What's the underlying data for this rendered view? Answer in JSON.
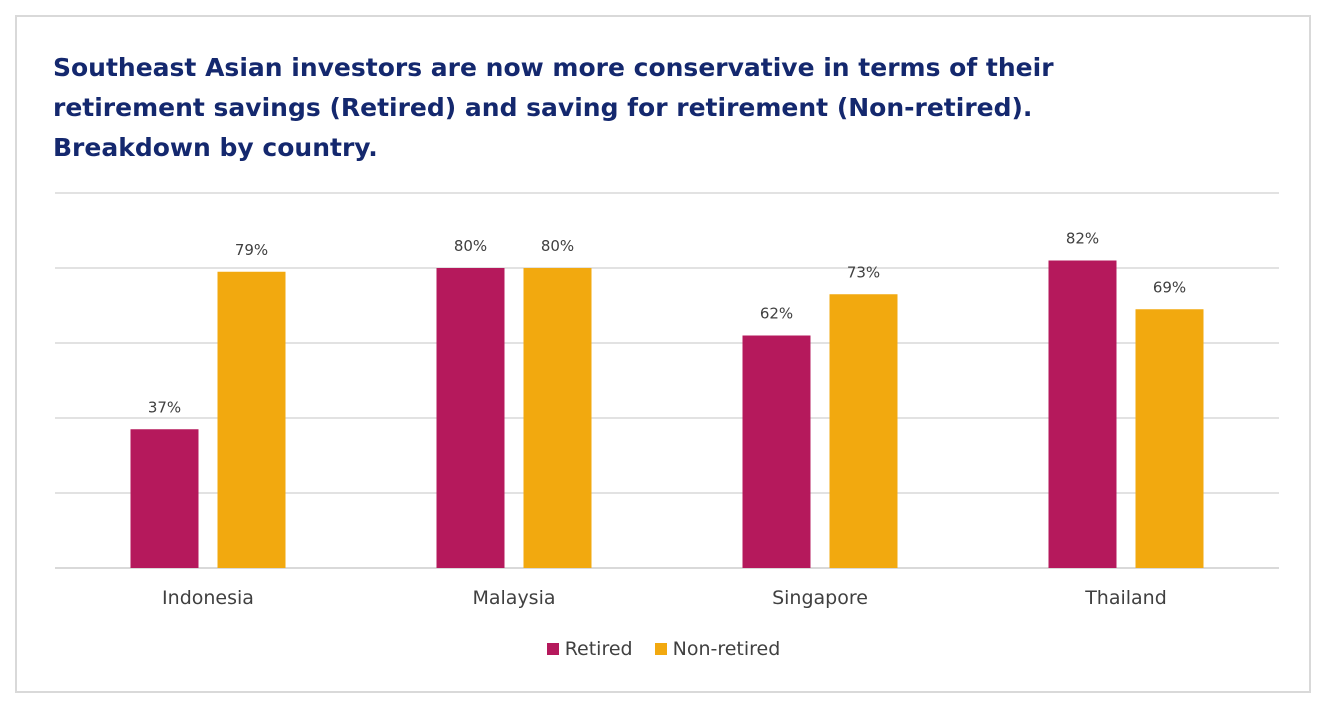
{
  "title_lines": [
    "Southeast Asian investors are now more conservative in terms of their",
    "retirement savings (Retired) and saving for retirement (Non-retired).",
    "Breakdown by country."
  ],
  "colors": {
    "retired": "#b5195c",
    "non_retired": "#f2a90f",
    "grid": "#d9d9d9",
    "text": "#404040",
    "title": "#14286e"
  },
  "chart_data": {
    "type": "bar",
    "title": "Southeast Asian investors are now more conservative in terms of their retirement savings (Retired) and saving for retirement (Non-retired). Breakdown by country.",
    "categories": [
      "Indonesia",
      "Malaysia",
      "Singapore",
      "Thailand"
    ],
    "series": [
      {
        "name": "Retired",
        "values": [
          37,
          80,
          62,
          82
        ],
        "labels": [
          "37%",
          "80%",
          "62%",
          "82%"
        ]
      },
      {
        "name": "Non-retired",
        "values": [
          79,
          80,
          73,
          69
        ],
        "labels": [
          "79%",
          "80%",
          "73%",
          "69%"
        ]
      }
    ],
    "ylim": [
      0,
      100
    ],
    "grid": true,
    "legend": "bottom-center"
  }
}
